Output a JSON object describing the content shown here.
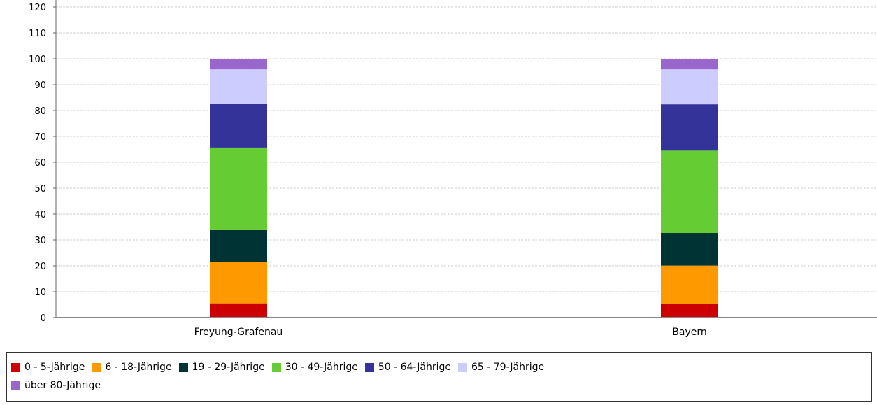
{
  "chart_data": {
    "type": "bar",
    "stacked": true,
    "categories": [
      "Freyung-Grafenau",
      "Bayern"
    ],
    "ylim": [
      0,
      120
    ],
    "yticks": [
      0,
      10,
      20,
      30,
      40,
      50,
      60,
      70,
      80,
      90,
      100,
      110,
      120
    ],
    "grid": true,
    "legend_position": "bottom",
    "series": [
      {
        "name": "0 - 5-Jährige",
        "color": "#cc0000",
        "values": [
          5.5,
          5.3
        ]
      },
      {
        "name": "6 - 18-Jährige",
        "color": "#ff9900",
        "values": [
          16.0,
          14.8
        ]
      },
      {
        "name": "19 - 29-Jährige",
        "color": "#003333",
        "values": [
          12.3,
          12.6
        ]
      },
      {
        "name": "30 - 49-Jährige",
        "color": "#66cc33",
        "values": [
          31.9,
          31.8
        ]
      },
      {
        "name": "50 - 64-Jährige",
        "color": "#333399",
        "values": [
          16.8,
          17.9
        ]
      },
      {
        "name": "65 - 79-Jährige",
        "color": "#ccccff",
        "values": [
          13.4,
          13.5
        ]
      },
      {
        "name": "über 80-Jährige",
        "color": "#9966cc",
        "values": [
          4.1,
          4.1
        ]
      }
    ]
  }
}
